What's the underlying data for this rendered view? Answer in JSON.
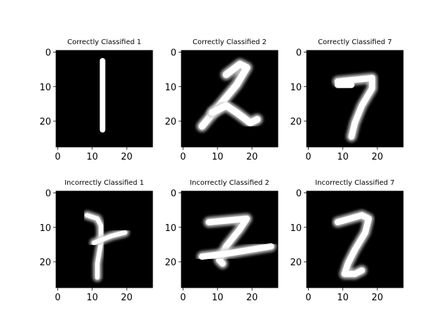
{
  "chart_data": [
    {
      "type": "heatmap",
      "title": "Correctly Classified 1",
      "xticks": [
        "0",
        "10",
        "20"
      ],
      "yticks": [
        "0",
        "10",
        "20"
      ],
      "xlim": [
        0,
        28
      ],
      "ylim": [
        0,
        28
      ],
      "cmap": "gray",
      "background": "#000000",
      "foreground": "#ffffff",
      "strokes": [
        [
          [
            13.5,
            3
          ],
          [
            13.5,
            23
          ]
        ]
      ],
      "stroke_width": 1.6
    },
    {
      "type": "heatmap",
      "title": "Correctly Classified 2",
      "xticks": [
        "0",
        "10",
        "20"
      ],
      "yticks": [
        "0",
        "10",
        "20"
      ],
      "xlim": [
        0,
        28
      ],
      "ylim": [
        0,
        28
      ],
      "cmap": "gray",
      "background": "#000000",
      "foreground": "#ffffff",
      "strokes": [
        [
          [
            13,
            7
          ],
          [
            17,
            4
          ],
          [
            19,
            5
          ],
          [
            16,
            10
          ],
          [
            11,
            16
          ],
          [
            6,
            22
          ]
        ],
        [
          [
            9,
            18
          ],
          [
            13,
            16
          ],
          [
            16,
            18
          ],
          [
            20,
            21
          ],
          [
            22,
            20
          ]
        ]
      ],
      "stroke_width": 2.0
    },
    {
      "type": "heatmap",
      "title": "Correctly Classified 7",
      "xticks": [
        "0",
        "10",
        "20"
      ],
      "yticks": [
        "0",
        "10",
        "20"
      ],
      "xlim": [
        0,
        28
      ],
      "ylim": [
        0,
        28
      ],
      "cmap": "gray",
      "background": "#000000",
      "foreground": "#ffffff",
      "strokes": [
        [
          [
            9,
            9
          ],
          [
            19,
            8
          ],
          [
            19,
            11
          ],
          [
            16,
            16
          ],
          [
            14,
            21
          ],
          [
            13,
            25
          ]
        ],
        [
          [
            9,
            10
          ],
          [
            13,
            10
          ]
        ]
      ],
      "stroke_width": 1.8
    },
    {
      "type": "heatmap",
      "title": "Incorrectly Classified 1",
      "xticks": [
        "0",
        "10",
        "20"
      ],
      "yticks": [
        "0",
        "10",
        "20"
      ],
      "xlim": [
        0,
        28
      ],
      "ylim": [
        0,
        28
      ],
      "cmap": "gray",
      "background": "#000000",
      "foreground": "#ffffff",
      "strokes": [
        [
          [
            9,
            7
          ],
          [
            12,
            8
          ],
          [
            13,
            10
          ],
          [
            13,
            15
          ],
          [
            12,
            21
          ],
          [
            12,
            25
          ]
        ],
        [
          [
            11,
            15
          ],
          [
            16,
            13
          ],
          [
            20,
            12
          ]
        ]
      ],
      "stroke_width": 1.3
    },
    {
      "type": "heatmap",
      "title": "Incorrectly Classified 2",
      "xticks": [
        "0",
        "10",
        "20"
      ],
      "yticks": [
        "0",
        "10",
        "20"
      ],
      "xlim": [
        0,
        28
      ],
      "ylim": [
        0,
        28
      ],
      "cmap": "gray",
      "background": "#000000",
      "foreground": "#ffffff",
      "strokes": [
        [
          [
            8,
            9
          ],
          [
            19,
            8
          ],
          [
            17,
            11
          ],
          [
            13,
            16
          ],
          [
            11,
            20
          ],
          [
            12,
            21
          ]
        ],
        [
          [
            6,
            19
          ],
          [
            14,
            18
          ],
          [
            26,
            16
          ]
        ]
      ],
      "stroke_width": 1.8
    },
    {
      "type": "heatmap",
      "title": "Incorrectly Classified 7",
      "xticks": [
        "0",
        "10",
        "20"
      ],
      "yticks": [
        "0",
        "10",
        "20"
      ],
      "xlim": [
        0,
        28
      ],
      "ylim": [
        0,
        28
      ],
      "cmap": "gray",
      "background": "#000000",
      "foreground": "#ffffff",
      "strokes": [
        [
          [
            9,
            9
          ],
          [
            16,
            7
          ],
          [
            18,
            8
          ],
          [
            17,
            12
          ],
          [
            14,
            17
          ],
          [
            12,
            21
          ],
          [
            11,
            24
          ],
          [
            14,
            24
          ],
          [
            16,
            23
          ]
        ]
      ],
      "stroke_width": 1.8
    }
  ]
}
